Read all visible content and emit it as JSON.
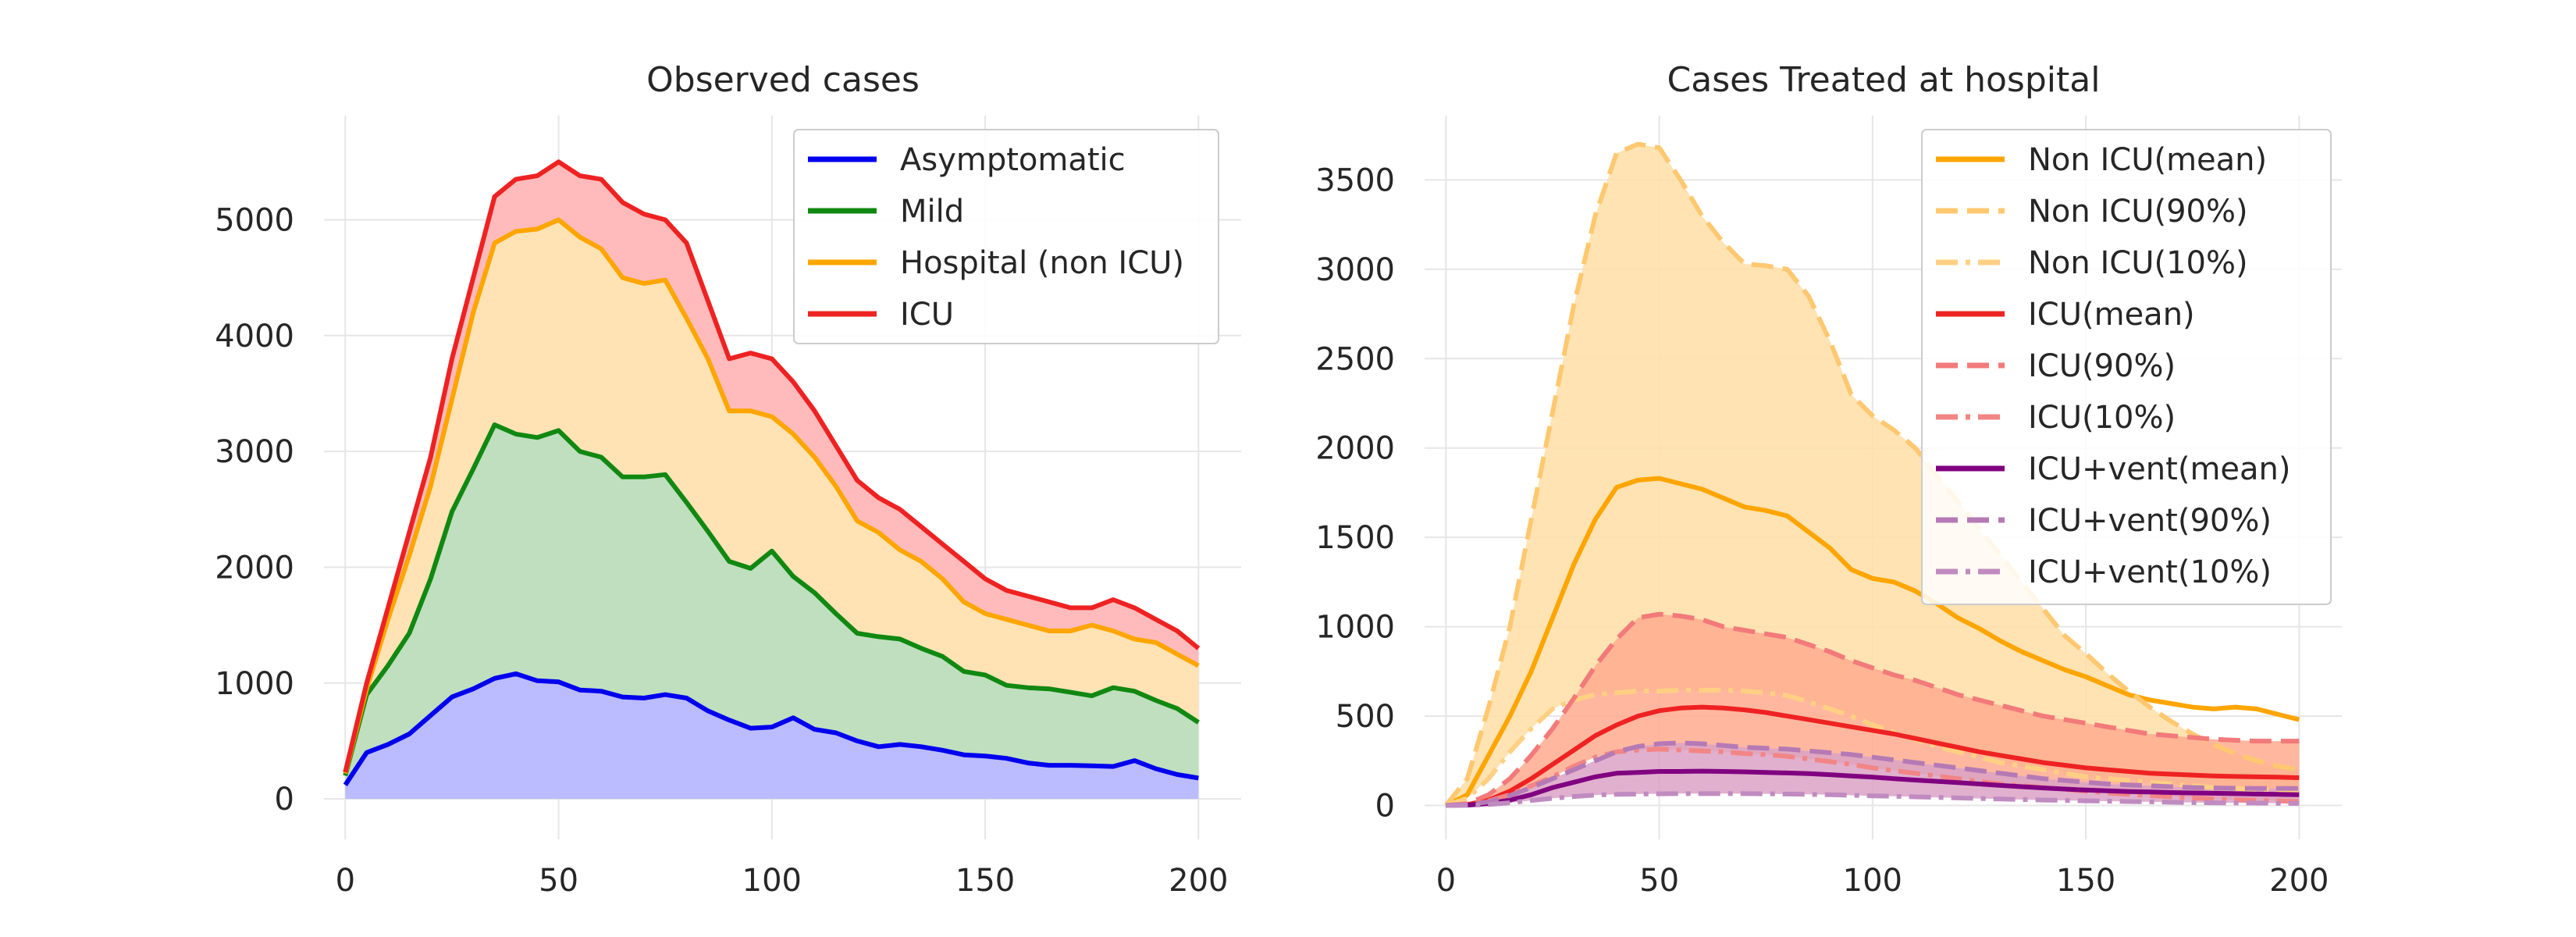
{
  "chart_data": [
    {
      "type": "area",
      "title": "Observed cases",
      "xlabel": "",
      "ylabel": "",
      "xlim": [
        -5,
        210
      ],
      "ylim": [
        -350,
        5900
      ],
      "xticks": [
        0,
        50,
        100,
        150,
        200
      ],
      "yticks": [
        0,
        1000,
        2000,
        3000,
        4000,
        5000
      ],
      "grid": true,
      "legend_position": "top-right",
      "stacked": true,
      "x": [
        0,
        5,
        10,
        15,
        20,
        25,
        30,
        35,
        40,
        45,
        50,
        55,
        60,
        65,
        70,
        75,
        80,
        85,
        90,
        95,
        100,
        105,
        110,
        115,
        120,
        125,
        130,
        135,
        140,
        145,
        150,
        155,
        160,
        165,
        170,
        175,
        180,
        185,
        190,
        195,
        200
      ],
      "series": [
        {
          "name": "Asymptomatic",
          "color": "#0000ee",
          "fill": "#bbbbff",
          "values": [
            120,
            400,
            470,
            560,
            720,
            880,
            950,
            1040,
            1080,
            1020,
            1010,
            940,
            930,
            880,
            870,
            900,
            870,
            760,
            680,
            610,
            620,
            700,
            600,
            570,
            500,
            450,
            470,
            450,
            420,
            380,
            370,
            350,
            310,
            290,
            290,
            285,
            280,
            330,
            260,
            210,
            180
          ]
        },
        {
          "name": "Mild",
          "color": "#118811",
          "fill": "#bfdfbf",
          "values": [
            200,
            900,
            1150,
            1430,
            1900,
            2480,
            2850,
            3230,
            3150,
            3120,
            3180,
            3000,
            2950,
            2780,
            2780,
            2800,
            2560,
            2310,
            2050,
            1990,
            2140,
            1920,
            1780,
            1600,
            1430,
            1400,
            1380,
            1300,
            1230,
            1100,
            1070,
            980,
            960,
            950,
            920,
            890,
            960,
            930,
            850,
            780,
            660
          ]
        },
        {
          "name": "Hospital (non ICU)",
          "color": "#ffa500",
          "fill": "#ffe3b5",
          "values": [
            220,
            950,
            1550,
            2100,
            2700,
            3450,
            4200,
            4800,
            4900,
            4920,
            5000,
            4850,
            4750,
            4500,
            4450,
            4480,
            4150,
            3800,
            3350,
            3350,
            3300,
            3150,
            2950,
            2700,
            2400,
            2300,
            2150,
            2050,
            1900,
            1700,
            1600,
            1550,
            1500,
            1450,
            1450,
            1500,
            1450,
            1380,
            1350,
            1250,
            1150
          ]
        },
        {
          "name": "ICU",
          "color": "#ee2222",
          "fill": "#ffbbbb",
          "values": [
            230,
            1000,
            1650,
            2300,
            2950,
            3800,
            4500,
            5200,
            5350,
            5380,
            5500,
            5380,
            5350,
            5150,
            5050,
            5000,
            4800,
            4300,
            3800,
            3850,
            3800,
            3600,
            3350,
            3050,
            2750,
            2600,
            2500,
            2350,
            2200,
            2050,
            1900,
            1800,
            1750,
            1700,
            1650,
            1650,
            1720,
            1650,
            1550,
            1450,
            1300
          ]
        }
      ]
    },
    {
      "type": "line",
      "title": "Cases Treated at hospital",
      "xlabel": "",
      "ylabel": "",
      "xlim": [
        -5,
        210
      ],
      "ylim": [
        -190,
        3860
      ],
      "xticks": [
        0,
        50,
        100,
        150,
        200
      ],
      "yticks": [
        0,
        500,
        1000,
        1500,
        2000,
        2500,
        3000,
        3500
      ],
      "grid": true,
      "legend_position": "top-right",
      "x": [
        0,
        5,
        10,
        15,
        20,
        25,
        30,
        35,
        40,
        45,
        50,
        55,
        60,
        65,
        70,
        75,
        80,
        85,
        90,
        95,
        100,
        105,
        110,
        115,
        120,
        125,
        130,
        135,
        140,
        145,
        150,
        155,
        160,
        165,
        170,
        175,
        180,
        185,
        190,
        195,
        200
      ],
      "bands": [
        {
          "upper": "Non ICU(90%)",
          "lower": "Non ICU(10%)",
          "fill": "#ffdea6"
        },
        {
          "upper": "ICU(90%)",
          "lower": "ICU(10%)",
          "fill": "#ffac8e"
        },
        {
          "upper": "ICU+vent(90%)",
          "lower": "ICU+vent(10%)",
          "fill": "#dba2c6"
        }
      ],
      "series": [
        {
          "name": "Non ICU(mean)",
          "color": "#ffa500",
          "style": "solid",
          "values": [
            0,
            60,
            280,
            500,
            750,
            1050,
            1350,
            1600,
            1780,
            1820,
            1830,
            1800,
            1770,
            1720,
            1670,
            1650,
            1620,
            1530,
            1440,
            1320,
            1270,
            1250,
            1200,
            1130,
            1050,
            990,
            920,
            860,
            810,
            760,
            720,
            670,
            620,
            590,
            570,
            550,
            540,
            550,
            540,
            510,
            480
          ]
        },
        {
          "name": "Non ICU(90%)",
          "color": "#ffc870",
          "style": "dashed",
          "values": [
            0,
            150,
            550,
            1000,
            1600,
            2200,
            2800,
            3300,
            3650,
            3700,
            3680,
            3500,
            3300,
            3150,
            3030,
            3020,
            3000,
            2850,
            2600,
            2300,
            2180,
            2100,
            2000,
            1850,
            1700,
            1550,
            1400,
            1250,
            1100,
            950,
            850,
            740,
            640,
            550,
            470,
            400,
            340,
            290,
            250,
            220,
            200
          ]
        },
        {
          "name": "Non ICU(10%)",
          "color": "#ffd083",
          "style": "dashdot",
          "values": [
            0,
            40,
            150,
            300,
            430,
            540,
            590,
            620,
            630,
            640,
            640,
            645,
            645,
            645,
            640,
            630,
            615,
            580,
            540,
            500,
            450,
            410,
            370,
            330,
            300,
            270,
            240,
            220,
            200,
            180,
            160,
            150,
            140,
            130,
            120,
            110,
            100,
            95,
            90,
            85,
            80
          ]
        },
        {
          "name": "ICU(mean)",
          "color": "#ee2222",
          "style": "solid",
          "values": [
            0,
            5,
            30,
            80,
            150,
            230,
            310,
            390,
            450,
            500,
            530,
            545,
            550,
            545,
            535,
            520,
            500,
            480,
            460,
            440,
            420,
            400,
            375,
            350,
            325,
            300,
            280,
            260,
            240,
            225,
            210,
            200,
            190,
            180,
            175,
            170,
            165,
            162,
            160,
            158,
            155
          ]
        },
        {
          "name": "ICU(90%)",
          "color": "#f27a7a",
          "style": "dashed",
          "values": [
            0,
            10,
            60,
            150,
            280,
            430,
            600,
            780,
            930,
            1050,
            1070,
            1060,
            1040,
            1000,
            980,
            960,
            940,
            900,
            860,
            810,
            770,
            730,
            700,
            660,
            620,
            590,
            560,
            530,
            500,
            480,
            460,
            440,
            420,
            400,
            390,
            380,
            370,
            365,
            360,
            360,
            360
          ]
        },
        {
          "name": "ICU(10%)",
          "color": "#f28585",
          "style": "dashdot",
          "values": [
            0,
            5,
            25,
            60,
            110,
            160,
            220,
            270,
            300,
            310,
            315,
            310,
            305,
            300,
            290,
            285,
            275,
            260,
            245,
            230,
            210,
            195,
            180,
            165,
            150,
            135,
            120,
            110,
            100,
            90,
            80,
            70,
            62,
            55,
            48,
            42,
            36,
            32,
            28,
            25,
            22
          ]
        },
        {
          "name": "ICU+vent(mean)",
          "color": "#800080",
          "style": "solid",
          "values": [
            0,
            2,
            10,
            30,
            60,
            100,
            130,
            160,
            180,
            185,
            190,
            190,
            192,
            190,
            188,
            185,
            182,
            178,
            172,
            165,
            158,
            150,
            142,
            135,
            128,
            120,
            112,
            105,
            98,
            92,
            86,
            82,
            78,
            75,
            72,
            70,
            68,
            66,
            64,
            62,
            60
          ]
        },
        {
          "name": "ICU+vent(90%)",
          "color": "#b57ab5",
          "style": "dashed",
          "values": [
            0,
            3,
            20,
            55,
            100,
            150,
            200,
            250,
            300,
            330,
            345,
            350,
            345,
            335,
            325,
            320,
            315,
            305,
            295,
            285,
            270,
            255,
            240,
            225,
            210,
            195,
            180,
            165,
            150,
            140,
            130,
            120,
            115,
            110,
            105,
            100,
            98,
            96,
            95,
            95,
            95
          ]
        },
        {
          "name": "ICU+vent(10%)",
          "color": "#c08bc0",
          "style": "dashdot",
          "values": [
            0,
            1,
            5,
            15,
            28,
            40,
            50,
            58,
            62,
            64,
            65,
            66,
            66,
            66,
            66,
            65,
            64,
            62,
            60,
            57,
            54,
            51,
            48,
            45,
            42,
            39,
            36,
            33,
            30,
            28,
            26,
            24,
            22,
            20,
            18,
            16,
            15,
            14,
            13,
            12,
            11
          ]
        }
      ]
    }
  ]
}
